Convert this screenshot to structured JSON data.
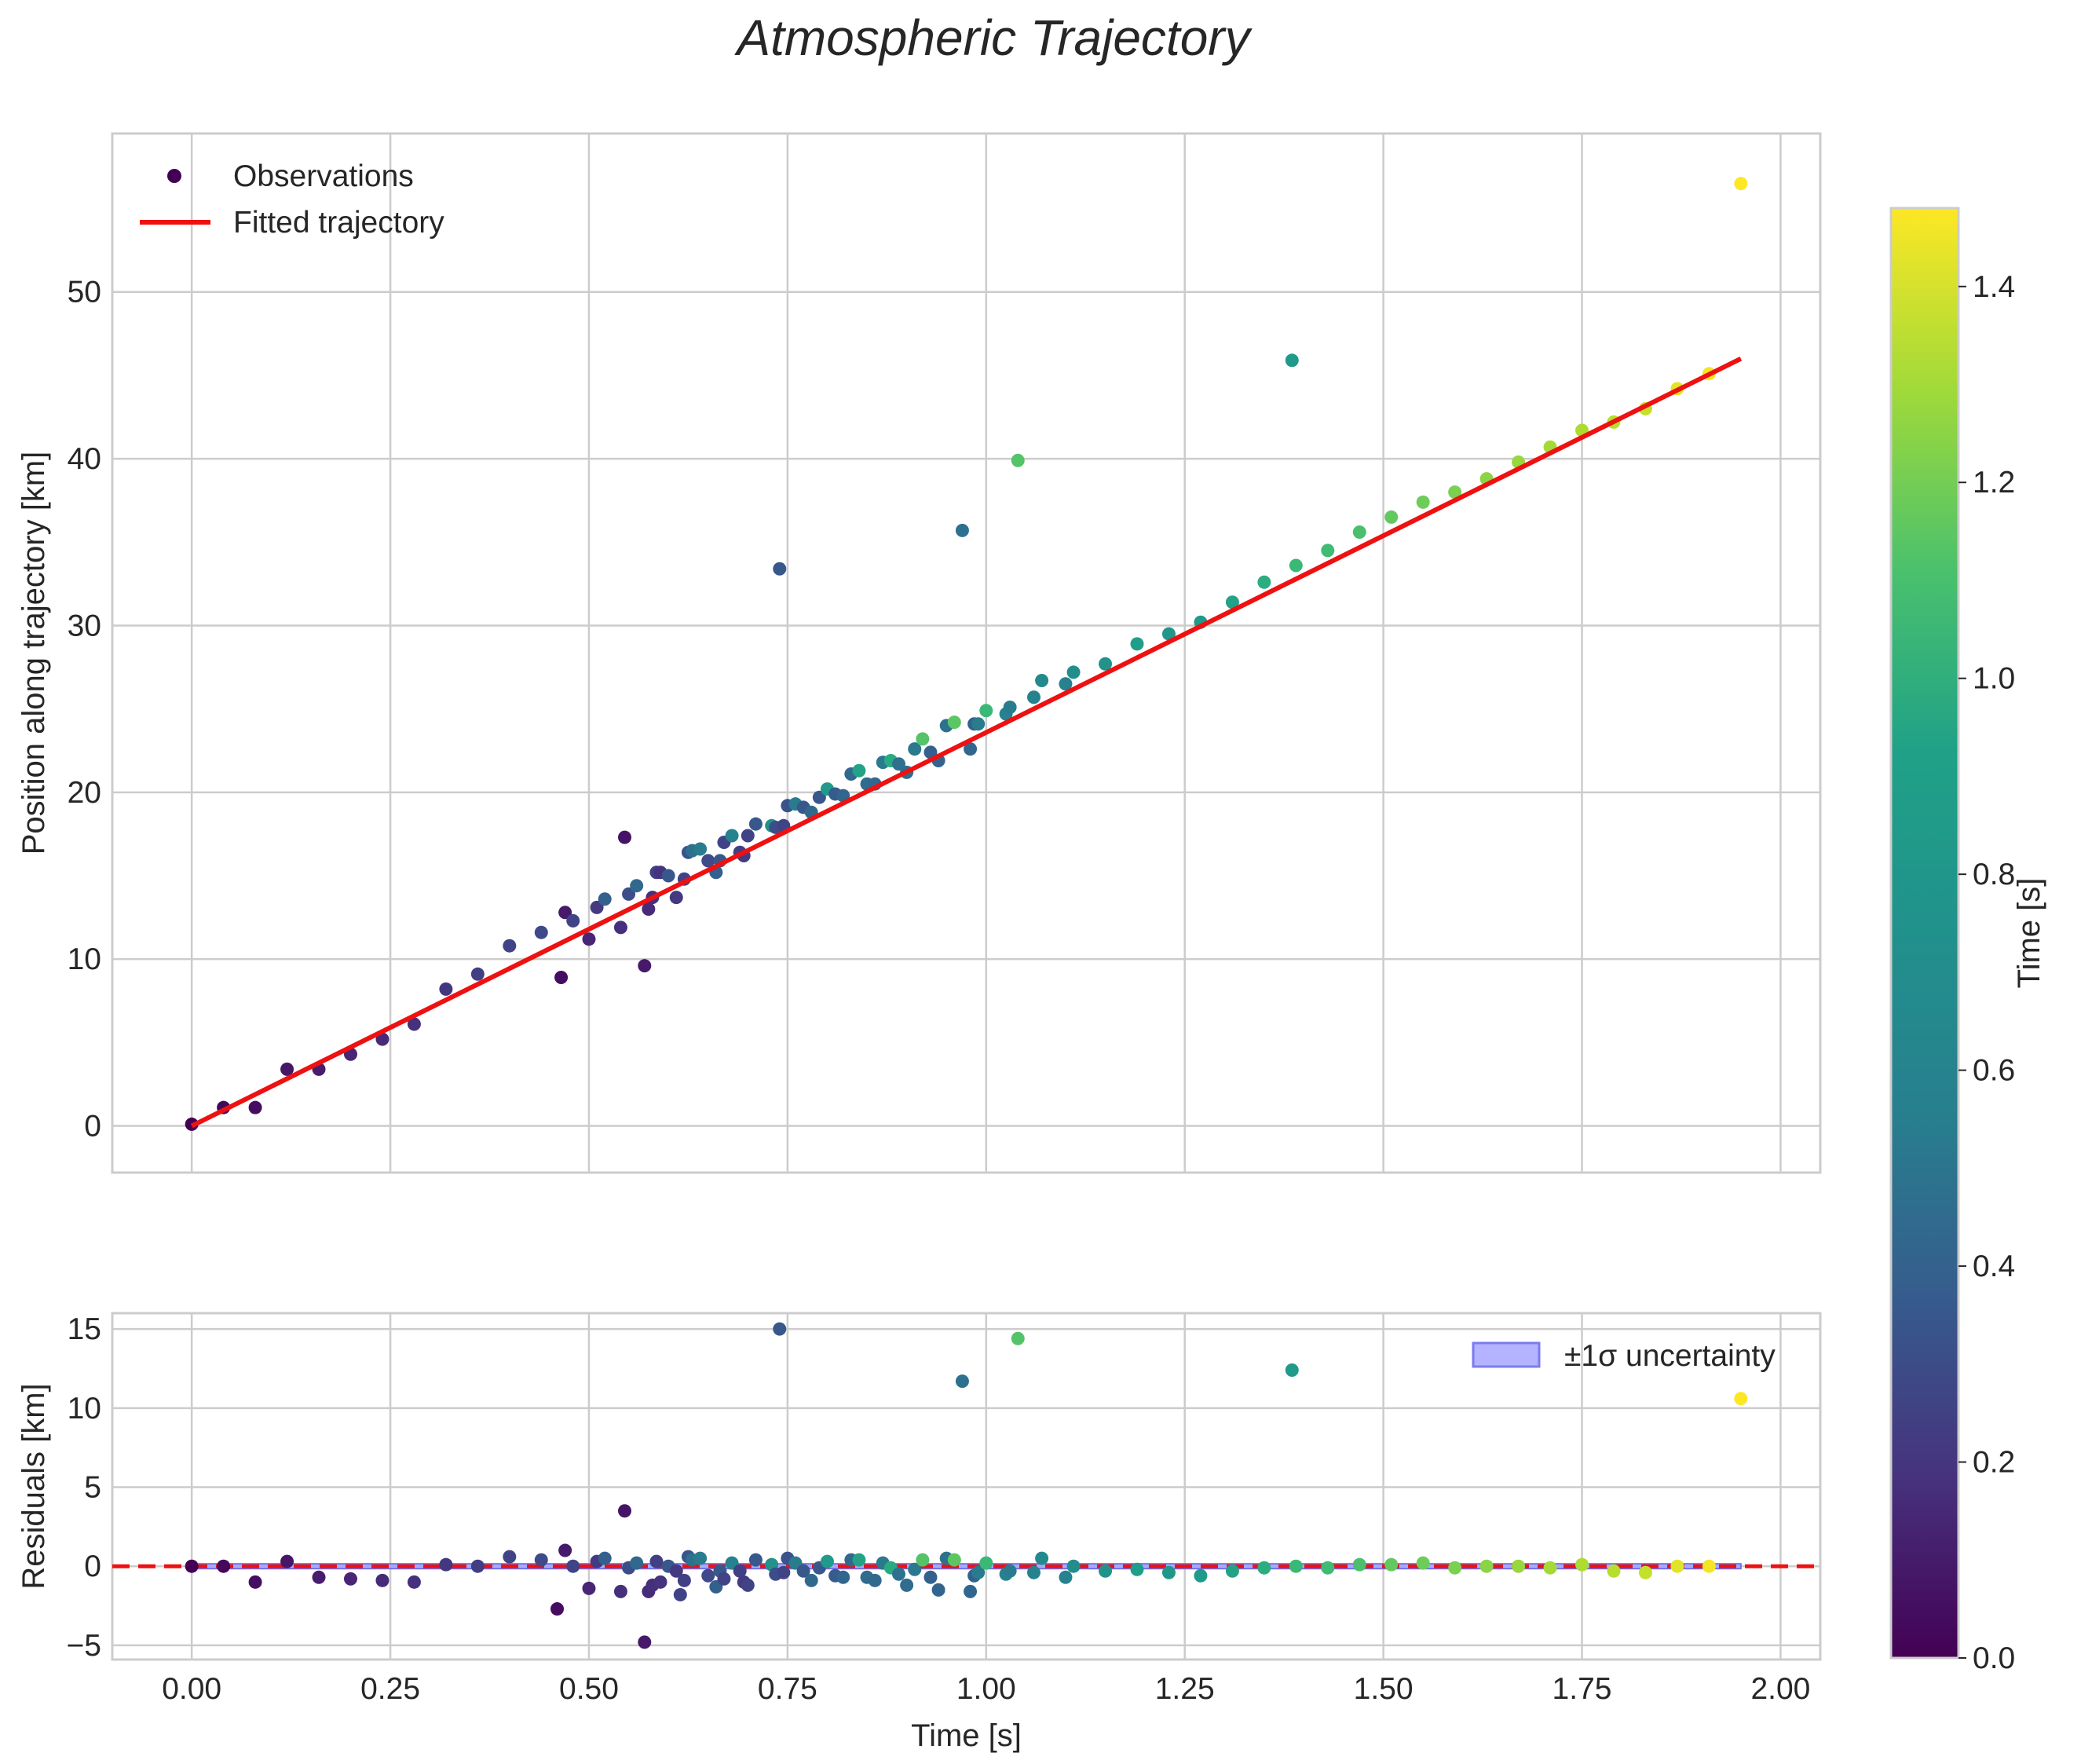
{
  "chart_data": {
    "title": "Atmospheric Trajectory",
    "colormap": "viridis",
    "colors": {
      "fit_line": "#ee1111",
      "zero_line": "#ee1111",
      "band": "#9f9fff",
      "band_edge": "#6f6ff0",
      "grid": "#cccccc"
    },
    "panels": [
      {
        "name": "trajectory",
        "type": "scatter",
        "xlabel": "",
        "ylabel": "Position along trajectory [km]",
        "xlim": [
          -0.1,
          2.05
        ],
        "ylim": [
          -2.8,
          59.5
        ],
        "xticks": [
          0.0,
          0.25,
          0.5,
          0.75,
          1.0,
          1.25,
          1.5,
          1.75,
          2.0
        ],
        "yticks": [
          0,
          10,
          20,
          30,
          40,
          50
        ],
        "ytick_labels": [
          "0",
          "10",
          "20",
          "30",
          "40",
          "50"
        ],
        "legend": {
          "location": "upper-left",
          "entries": [
            "Observations",
            "Fitted trajectory"
          ]
        },
        "fit_line": {
          "x": [
            0.0,
            1.95
          ],
          "y": [
            0.0,
            46.0
          ]
        },
        "series": [
          {
            "name": "Observations",
            "x": [
              0.0,
              0.04,
              0.08,
              0.12,
              0.16,
              0.2,
              0.24,
              0.28,
              0.32,
              0.36,
              0.4,
              0.44,
              0.465,
              0.47,
              0.48,
              0.5,
              0.51,
              0.52,
              0.54,
              0.545,
              0.55,
              0.56,
              0.57,
              0.575,
              0.58,
              0.585,
              0.59,
              0.6,
              0.61,
              0.62,
              0.625,
              0.63,
              0.64,
              0.65,
              0.66,
              0.665,
              0.67,
              0.68,
              0.69,
              0.695,
              0.7,
              0.71,
              0.73,
              0.735,
              0.74,
              0.745,
              0.75,
              0.76,
              0.77,
              0.78,
              0.79,
              0.8,
              0.81,
              0.82,
              0.83,
              0.84,
              0.85,
              0.86,
              0.87,
              0.88,
              0.89,
              0.9,
              0.91,
              0.92,
              0.93,
              0.94,
              0.95,
              0.96,
              0.97,
              0.98,
              0.985,
              0.99,
              1.0,
              1.025,
              1.03,
              1.04,
              1.06,
              1.07,
              1.1,
              1.11,
              1.15,
              1.19,
              1.23,
              1.27,
              1.31,
              1.35,
              1.385,
              1.39,
              1.43,
              1.47,
              1.51,
              1.55,
              1.59,
              1.63,
              1.67,
              1.71,
              1.75,
              1.79,
              1.83,
              1.87,
              1.91,
              1.95
            ],
            "y": [
              0.1,
              1.1,
              1.1,
              3.4,
              3.4,
              4.3,
              5.2,
              6.1,
              8.2,
              9.1,
              10.8,
              11.6,
              8.9,
              12.8,
              12.3,
              11.2,
              13.1,
              13.6,
              11.9,
              17.3,
              13.9,
              14.4,
              9.6,
              13.0,
              13.7,
              15.2,
              15.2,
              15.0,
              13.7,
              14.8,
              16.4,
              16.5,
              16.6,
              15.9,
              15.2,
              15.9,
              17.0,
              17.4,
              16.4,
              16.2,
              17.4,
              18.1,
              18.0,
              17.9,
              33.4,
              18.0,
              19.2,
              19.3,
              19.1,
              18.8,
              19.7,
              20.2,
              19.9,
              19.8,
              21.1,
              21.3,
              20.5,
              20.5,
              21.8,
              21.9,
              21.7,
              21.2,
              22.6,
              23.2,
              22.4,
              21.9,
              24.0,
              24.2,
              35.7,
              22.6,
              24.1,
              24.1,
              24.9,
              24.7,
              25.1,
              39.9,
              25.7,
              26.7,
              26.5,
              27.2,
              27.7,
              28.9,
              29.5,
              30.2,
              31.4,
              32.6,
              45.9,
              33.6,
              34.5,
              35.6,
              36.5,
              37.4,
              38.0,
              38.8,
              39.8,
              40.7,
              41.7,
              42.2,
              43.0,
              44.2,
              45.1,
              56.5
            ],
            "color_values": [
              0.0,
              0.03,
              0.06,
              0.09,
              0.12,
              0.15,
              0.18,
              0.21,
              0.24,
              0.27,
              0.3,
              0.33,
              0.05,
              0.1,
              0.3,
              0.15,
              0.25,
              0.45,
              0.2,
              0.08,
              0.35,
              0.5,
              0.1,
              0.18,
              0.2,
              0.28,
              0.22,
              0.4,
              0.25,
              0.3,
              0.38,
              0.55,
              0.62,
              0.33,
              0.45,
              0.4,
              0.3,
              0.66,
              0.28,
              0.25,
              0.3,
              0.4,
              0.75,
              0.35,
              0.4,
              0.3,
              0.38,
              0.62,
              0.4,
              0.5,
              0.4,
              0.8,
              0.42,
              0.48,
              0.5,
              0.85,
              0.52,
              0.5,
              0.6,
              0.9,
              0.55,
              0.52,
              0.6,
              1.08,
              0.45,
              0.47,
              0.55,
              1.1,
              0.55,
              0.49,
              0.45,
              0.62,
              1.0,
              0.65,
              0.62,
              1.08,
              0.65,
              0.7,
              0.66,
              0.72,
              0.75,
              0.82,
              0.78,
              0.8,
              0.85,
              0.92,
              0.8,
              1.0,
              1.02,
              1.05,
              1.12,
              1.15,
              1.18,
              1.22,
              1.25,
              1.28,
              1.3,
              1.32,
              1.35,
              1.42,
              1.46,
              1.48
            ]
          }
        ]
      },
      {
        "name": "residuals",
        "type": "scatter",
        "xlabel": "Time [s]",
        "ylabel": "Residuals [km]",
        "xlim": [
          -0.1,
          2.05
        ],
        "ylim": [
          -5.9,
          16.0
        ],
        "xticks": [
          0.0,
          0.25,
          0.5,
          0.75,
          1.0,
          1.25,
          1.5,
          1.75,
          2.0
        ],
        "xtick_labels": [
          "0.00",
          "0.25",
          "0.50",
          "0.75",
          "1.00",
          "1.25",
          "1.50",
          "1.75",
          "2.00"
        ],
        "yticks": [
          -5,
          0,
          5,
          10,
          15
        ],
        "ytick_labels": [
          "−5",
          "0",
          "5",
          "10",
          "15"
        ],
        "legend": {
          "location": "upper-right",
          "entries": [
            "±1σ uncertainty"
          ]
        },
        "zero_line": 0,
        "uncertainty_band": {
          "x": [
            0.0,
            1.95
          ],
          "lower": -0.15,
          "upper": 0.15
        },
        "series": [
          {
            "name": "Residuals",
            "x": [
              0.0,
              0.04,
              0.08,
              0.12,
              0.16,
              0.2,
              0.24,
              0.28,
              0.32,
              0.36,
              0.4,
              0.44,
              0.46,
              0.47,
              0.48,
              0.5,
              0.51,
              0.52,
              0.54,
              0.545,
              0.55,
              0.56,
              0.57,
              0.575,
              0.58,
              0.585,
              0.59,
              0.6,
              0.61,
              0.615,
              0.62,
              0.625,
              0.63,
              0.64,
              0.65,
              0.66,
              0.665,
              0.67,
              0.68,
              0.69,
              0.695,
              0.7,
              0.71,
              0.73,
              0.735,
              0.74,
              0.745,
              0.75,
              0.76,
              0.77,
              0.78,
              0.79,
              0.8,
              0.81,
              0.82,
              0.83,
              0.84,
              0.85,
              0.86,
              0.87,
              0.88,
              0.89,
              0.9,
              0.91,
              0.92,
              0.93,
              0.94,
              0.95,
              0.96,
              0.97,
              0.98,
              0.985,
              0.99,
              1.0,
              1.025,
              1.03,
              1.04,
              1.06,
              1.07,
              1.1,
              1.11,
              1.15,
              1.19,
              1.23,
              1.27,
              1.31,
              1.35,
              1.385,
              1.39,
              1.43,
              1.47,
              1.51,
              1.55,
              1.59,
              1.63,
              1.67,
              1.71,
              1.75,
              1.79,
              1.83,
              1.87,
              1.91,
              1.95
            ],
            "y": [
              0.0,
              0.0,
              -1.0,
              0.3,
              -0.7,
              -0.8,
              -0.9,
              -1.0,
              0.1,
              0.0,
              0.6,
              0.4,
              -2.7,
              1.0,
              0.0,
              -1.4,
              0.3,
              0.5,
              -1.6,
              3.5,
              -0.1,
              0.2,
              -4.8,
              -1.6,
              -1.2,
              0.3,
              -1.0,
              0.0,
              -0.3,
              -1.8,
              -0.9,
              0.6,
              0.4,
              0.5,
              -0.6,
              -1.3,
              -0.3,
              -0.8,
              0.2,
              -0.3,
              -1.0,
              -1.2,
              0.4,
              0.1,
              -0.5,
              15.0,
              -0.4,
              0.5,
              0.2,
              -0.3,
              -0.9,
              -0.1,
              0.3,
              -0.6,
              -0.7,
              0.4,
              0.4,
              -0.7,
              -0.9,
              0.2,
              -0.1,
              -0.5,
              -1.2,
              -0.2,
              0.4,
              -0.7,
              -1.5,
              0.5,
              0.4,
              11.7,
              -1.6,
              -0.6,
              -0.4,
              0.2,
              -0.5,
              -0.3,
              14.4,
              -0.4,
              0.5,
              -0.7,
              0.0,
              -0.3,
              -0.2,
              -0.4,
              -0.6,
              -0.3,
              -0.1,
              12.4,
              0.0,
              -0.1,
              0.1,
              0.1,
              0.2,
              -0.1,
              0.0,
              0.0,
              -0.1,
              0.1,
              -0.3,
              -0.4,
              0.0,
              0.0,
              10.6
            ],
            "color_values": [
              0.0,
              0.03,
              0.06,
              0.09,
              0.12,
              0.15,
              0.18,
              0.21,
              0.24,
              0.27,
              0.3,
              0.33,
              0.05,
              0.1,
              0.3,
              0.15,
              0.25,
              0.45,
              0.2,
              0.08,
              0.35,
              0.5,
              0.1,
              0.18,
              0.2,
              0.28,
              0.22,
              0.4,
              0.25,
              0.3,
              0.28,
              0.38,
              0.55,
              0.62,
              0.33,
              0.45,
              0.4,
              0.3,
              0.66,
              0.28,
              0.25,
              0.3,
              0.4,
              0.75,
              0.35,
              0.4,
              0.3,
              0.38,
              0.62,
              0.4,
              0.5,
              0.4,
              0.8,
              0.42,
              0.48,
              0.5,
              0.85,
              0.52,
              0.5,
              0.6,
              0.9,
              0.55,
              0.52,
              0.6,
              1.08,
              0.45,
              0.47,
              0.55,
              1.1,
              0.55,
              0.49,
              0.45,
              0.62,
              1.0,
              0.65,
              0.62,
              1.08,
              0.65,
              0.7,
              0.66,
              0.72,
              0.75,
              0.82,
              0.78,
              0.8,
              0.85,
              0.92,
              0.8,
              1.0,
              1.02,
              1.05,
              1.12,
              1.15,
              1.18,
              1.22,
              1.25,
              1.28,
              1.3,
              1.32,
              1.35,
              1.42,
              1.46,
              1.48
            ]
          }
        ]
      }
    ],
    "colorbar": {
      "label": "Time [s]",
      "range": [
        0.0,
        1.48
      ],
      "ticks": [
        0.0,
        0.2,
        0.4,
        0.6,
        0.8,
        1.0,
        1.2,
        1.4
      ],
      "tick_labels": [
        "0.0",
        "0.2",
        "0.4",
        "0.6",
        "0.8",
        "1.0",
        "1.2",
        "1.4"
      ]
    }
  }
}
